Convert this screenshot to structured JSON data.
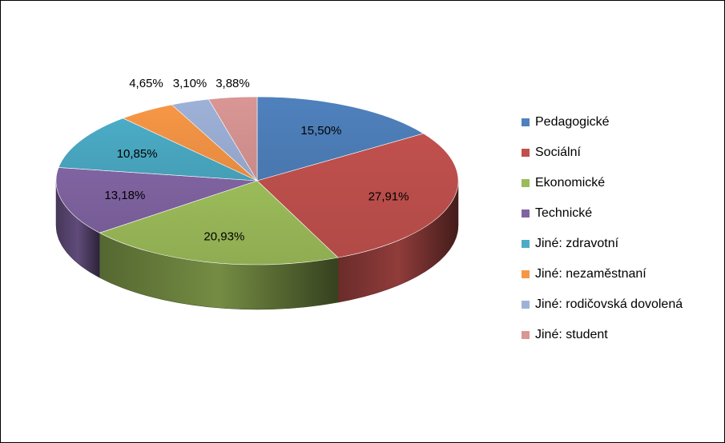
{
  "chart_data": {
    "type": "pie",
    "title": "",
    "legend_position": "right",
    "slices": [
      {
        "label": "Pedagogické",
        "value": 15.5,
        "value_label": "15,50%",
        "color": "#4F81BD"
      },
      {
        "label": "Sociální",
        "value": 27.91,
        "value_label": "27,91%",
        "color": "#C0504D"
      },
      {
        "label": "Ekonomické",
        "value": 20.93,
        "value_label": "20,93%",
        "color": "#9BBB59"
      },
      {
        "label": "Technické",
        "value": 13.18,
        "value_label": "13,18%",
        "color": "#8064A2"
      },
      {
        "label": "Jiné: zdravotní",
        "value": 10.85,
        "value_label": "10,85%",
        "color": "#4BACC6"
      },
      {
        "label": "Jiné: nezaměstnaní",
        "value": 4.65,
        "value_label": "4,65%",
        "color": "#F79646"
      },
      {
        "label": "Jiné: rodičovská dovolená",
        "value": 3.1,
        "value_label": "3,10%",
        "color": "#9EB1D8"
      },
      {
        "label": "Jiné: student",
        "value": 3.88,
        "value_label": "3,88%",
        "color": "#D99694"
      }
    ]
  }
}
